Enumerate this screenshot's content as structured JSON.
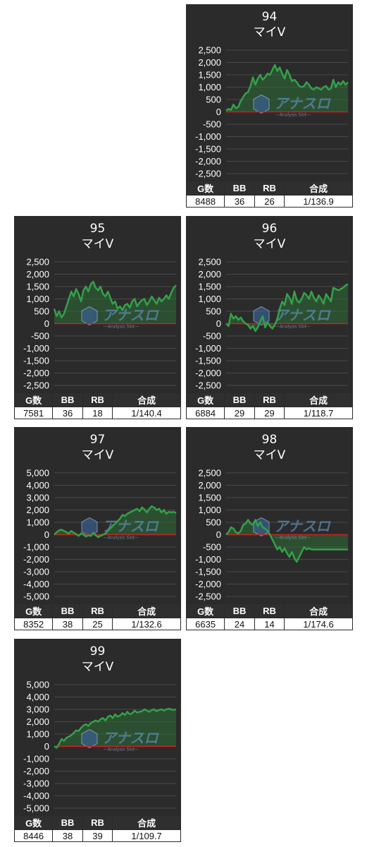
{
  "colors": {
    "panel_bg": "#2b2b2b",
    "text": "#ffffff",
    "grid": "#4a4a4a",
    "series": "#33a14a",
    "fill": "#2e6e36",
    "zero_line": "#cc2222"
  },
  "watermark": {
    "text": "アナスロ",
    "subtext": "—Analysis Slot—"
  },
  "table_headers": {
    "g": "G数",
    "bb": "BB",
    "rb": "RB",
    "gousei": "合成"
  },
  "chart_data": [
    {
      "type": "line",
      "id": "94",
      "title": "94",
      "subtitle": "マイV",
      "ylim": [
        -2500,
        2500
      ],
      "ticks": [
        "2,500",
        "2,000",
        "1,500",
        "1,000",
        "500",
        "0",
        "-500",
        "-1,000",
        "-1,500",
        "-2,000",
        "-2,500"
      ],
      "tick_values": [
        2500,
        2000,
        1500,
        1000,
        500,
        0,
        -500,
        -1000,
        -1500,
        -2000,
        -2500
      ],
      "x": [
        0,
        2,
        4,
        6,
        8,
        10,
        12,
        14,
        16,
        18,
        20,
        22,
        24,
        26,
        28,
        30,
        32,
        34,
        36,
        38,
        40,
        42,
        44,
        46,
        48,
        50,
        52,
        54,
        56,
        58,
        60,
        62,
        64,
        66,
        68,
        70,
        72,
        74,
        76,
        78,
        80,
        82,
        84,
        86,
        88,
        90,
        92,
        94,
        96,
        98,
        100
      ],
      "values": [
        50,
        120,
        80,
        300,
        150,
        200,
        450,
        600,
        750,
        800,
        1050,
        1400,
        1100,
        1350,
        1500,
        1300,
        1400,
        1550,
        1500,
        1700,
        1900,
        1650,
        1800,
        1550,
        1350,
        1700,
        1500,
        1250,
        1300,
        1200,
        1050,
        1000,
        1050,
        1200,
        1100,
        950,
        900,
        1000,
        950,
        900,
        1000,
        1050,
        900,
        950,
        1300,
        1000,
        1200,
        1100,
        1250,
        1100,
        1200
      ],
      "stats": {
        "g": "8488",
        "bb": "36",
        "rb": "26",
        "gousei": "1/136.9"
      }
    },
    {
      "type": "line",
      "id": "95",
      "title": "95",
      "subtitle": "マイV",
      "ylim": [
        -2500,
        2500
      ],
      "ticks": [
        "2,500",
        "2,000",
        "1,500",
        "1,000",
        "500",
        "0",
        "-500",
        "-1,000",
        "-1,500",
        "-2,000",
        "-2,500"
      ],
      "tick_values": [
        2500,
        2000,
        1500,
        1000,
        500,
        0,
        -500,
        -1000,
        -1500,
        -2000,
        -2500
      ],
      "x": [
        0,
        2,
        4,
        6,
        8,
        10,
        12,
        14,
        16,
        18,
        20,
        22,
        24,
        26,
        28,
        30,
        32,
        34,
        36,
        38,
        40,
        42,
        44,
        46,
        48,
        50,
        52,
        54,
        56,
        58,
        60,
        62,
        64,
        66,
        68,
        70,
        72,
        74,
        76,
        78,
        80,
        82,
        84,
        86,
        88,
        90,
        92,
        94,
        96,
        98,
        100
      ],
      "values": [
        600,
        300,
        500,
        250,
        400,
        700,
        1000,
        1300,
        1100,
        1400,
        1200,
        900,
        1350,
        1500,
        1300,
        1600,
        1700,
        1450,
        1350,
        1500,
        1200,
        1100,
        1300,
        1050,
        800,
        900,
        600,
        700,
        550,
        750,
        800,
        650,
        900,
        1000,
        700,
        850,
        950,
        1000,
        750,
        900,
        1100,
        950,
        800,
        1050,
        900,
        1000,
        1150,
        1000,
        1250,
        1450,
        1550
      ],
      "stats": {
        "g": "7581",
        "bb": "36",
        "rb": "18",
        "gousei": "1/140.4"
      }
    },
    {
      "type": "line",
      "id": "96",
      "title": "96",
      "subtitle": "マイV",
      "ylim": [
        -2500,
        2500
      ],
      "ticks": [
        "2,500",
        "2,000",
        "1,500",
        "1,000",
        "500",
        "0",
        "-500",
        "-1,000",
        "-1,500",
        "-2,000",
        "-2,500"
      ],
      "tick_values": [
        2500,
        2000,
        1500,
        1000,
        500,
        0,
        -500,
        -1000,
        -1500,
        -2000,
        -2500
      ],
      "x": [
        0,
        2,
        4,
        6,
        8,
        10,
        12,
        14,
        16,
        18,
        20,
        22,
        24,
        26,
        28,
        30,
        32,
        34,
        36,
        38,
        40,
        42,
        44,
        46,
        48,
        50,
        52,
        54,
        56,
        58,
        60,
        62,
        64,
        66,
        68,
        70,
        72,
        74,
        76,
        78,
        80,
        82,
        84,
        86,
        88,
        90,
        92,
        94,
        96,
        98,
        100
      ],
      "values": [
        0,
        -100,
        400,
        200,
        300,
        150,
        250,
        100,
        0,
        -50,
        -200,
        -100,
        -300,
        -150,
        100,
        300,
        -150,
        50,
        -100,
        -200,
        -50,
        200,
        600,
        900,
        750,
        1200,
        1050,
        800,
        1300,
        950,
        850,
        1000,
        1250,
        1150,
        1000,
        1300,
        1050,
        900,
        1150,
        1000,
        800,
        1200,
        1050,
        900,
        1450,
        1400,
        1350,
        1400,
        1450,
        1550,
        1600
      ],
      "stats": {
        "g": "6884",
        "bb": "29",
        "rb": "29",
        "gousei": "1/118.7"
      }
    },
    {
      "type": "line",
      "id": "97",
      "title": "97",
      "subtitle": "マイV",
      "ylim": [
        -5000,
        5000
      ],
      "ticks": [
        "5,000",
        "4,000",
        "3,000",
        "2,000",
        "1,000",
        "0",
        "-1,000",
        "-2,000",
        "-3,000",
        "-4,000",
        "-5,000"
      ],
      "tick_values": [
        5000,
        4000,
        3000,
        2000,
        1000,
        0,
        -1000,
        -2000,
        -3000,
        -4000,
        -5000
      ],
      "x": [
        0,
        2,
        4,
        6,
        8,
        10,
        12,
        14,
        16,
        18,
        20,
        22,
        24,
        26,
        28,
        30,
        32,
        34,
        36,
        38,
        40,
        42,
        44,
        46,
        48,
        50,
        52,
        54,
        56,
        58,
        60,
        62,
        64,
        66,
        68,
        70,
        72,
        74,
        76,
        78,
        80,
        82,
        84,
        86,
        88,
        90,
        92,
        94,
        96,
        98,
        100
      ],
      "values": [
        0,
        200,
        350,
        400,
        300,
        200,
        100,
        300,
        150,
        50,
        -100,
        100,
        0,
        -150,
        -50,
        -100,
        150,
        -50,
        -200,
        -100,
        0,
        100,
        300,
        500,
        700,
        900,
        1100,
        1300,
        1600,
        1500,
        1700,
        1800,
        1900,
        2000,
        2100,
        1900,
        2200,
        2050,
        1800,
        2100,
        2300,
        2200,
        2000,
        2100,
        1800,
        2000,
        1700,
        1850,
        1800,
        1850,
        1750
      ],
      "stats": {
        "g": "8352",
        "bb": "38",
        "rb": "25",
        "gousei": "1/132.6"
      }
    },
    {
      "type": "line",
      "id": "98",
      "title": "98",
      "subtitle": "マイV",
      "ylim": [
        -2500,
        2500
      ],
      "ticks": [
        "2,500",
        "2,000",
        "1,500",
        "1,000",
        "500",
        "0",
        "-500",
        "-1,000",
        "-1,500",
        "-2,000",
        "-2,500"
      ],
      "tick_values": [
        2500,
        2000,
        1500,
        1000,
        500,
        0,
        -500,
        -1000,
        -1500,
        -2000,
        -2500
      ],
      "x": [
        0,
        2,
        4,
        6,
        8,
        10,
        12,
        14,
        16,
        18,
        20,
        22,
        24,
        26,
        28,
        30,
        32,
        34,
        36,
        38,
        40,
        42,
        44,
        46,
        48,
        50,
        52,
        54,
        56,
        58,
        60,
        62,
        64,
        66,
        68,
        70,
        72,
        74,
        76,
        78,
        80,
        82,
        84,
        86,
        88,
        90,
        92,
        94,
        96,
        98,
        100
      ],
      "values": [
        0,
        100,
        300,
        250,
        100,
        50,
        150,
        400,
        450,
        600,
        450,
        400,
        600,
        350,
        500,
        300,
        250,
        150,
        0,
        -200,
        -400,
        -600,
        -500,
        -700,
        -550,
        -750,
        -900,
        -700,
        -950,
        -1100,
        -900,
        -700,
        -500,
        -600,
        -550,
        -600,
        -600,
        -600,
        -600,
        -600,
        -600,
        -600,
        -600,
        -600,
        -600,
        -600,
        -600,
        -600,
        -600,
        -600,
        -600
      ],
      "stats": {
        "g": "6635",
        "bb": "24",
        "rb": "14",
        "gousei": "1/174.6"
      }
    },
    {
      "type": "line",
      "id": "99",
      "title": "99",
      "subtitle": "マイV",
      "ylim": [
        -5000,
        5000
      ],
      "ticks": [
        "5,000",
        "4,000",
        "3,000",
        "2,000",
        "1,000",
        "0",
        "-1,000",
        "-2,000",
        "-3,000",
        "-4,000",
        "-5,000"
      ],
      "tick_values": [
        5000,
        4000,
        3000,
        2000,
        1000,
        0,
        -1000,
        -2000,
        -3000,
        -4000,
        -5000
      ],
      "x": [
        0,
        2,
        4,
        6,
        8,
        10,
        12,
        14,
        16,
        18,
        20,
        22,
        24,
        26,
        28,
        30,
        32,
        34,
        36,
        38,
        40,
        42,
        44,
        46,
        48,
        50,
        52,
        54,
        56,
        58,
        60,
        62,
        64,
        66,
        68,
        70,
        72,
        74,
        76,
        78,
        80,
        82,
        84,
        86,
        88,
        90,
        92,
        94,
        96,
        98,
        100
      ],
      "values": [
        0,
        -100,
        200,
        600,
        450,
        700,
        800,
        900,
        1100,
        1300,
        1250,
        1500,
        1700,
        1800,
        1650,
        1900,
        2000,
        2100,
        2000,
        2200,
        2300,
        2100,
        2400,
        2500,
        2300,
        2600,
        2400,
        2500,
        2700,
        2550,
        2800,
        2600,
        2700,
        2900,
        2750,
        2800,
        2850,
        3000,
        2900,
        2800,
        2950,
        3000,
        2850,
        2950,
        3000,
        2900,
        3000,
        3050,
        3000,
        2950,
        3000
      ],
      "stats": {
        "g": "8446",
        "bb": "38",
        "rb": "39",
        "gousei": "1/109.7"
      }
    }
  ]
}
